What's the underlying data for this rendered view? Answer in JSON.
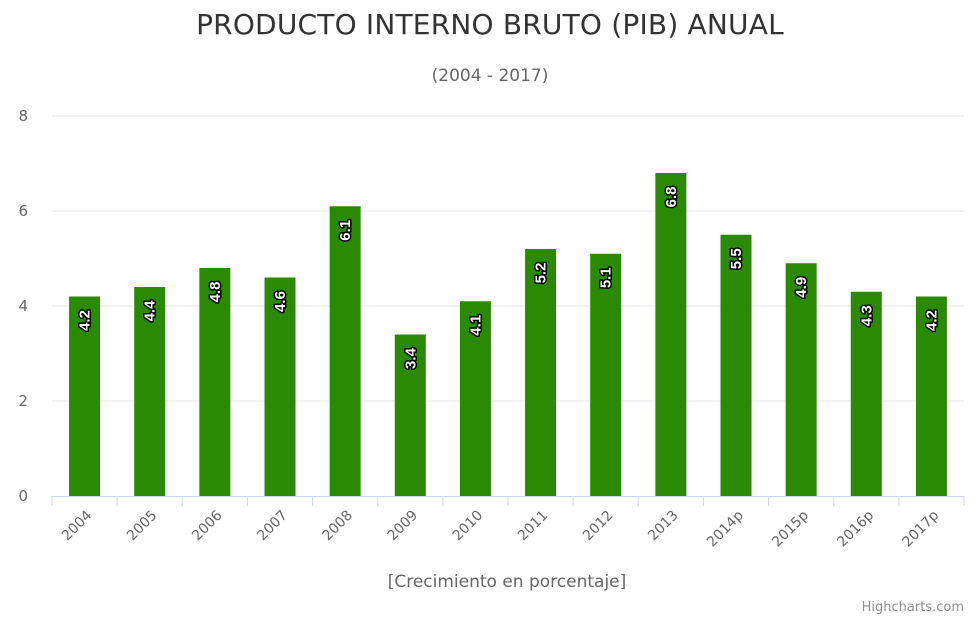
{
  "chart_data": {
    "type": "bar",
    "title": "PRODUCTO INTERNO BRUTO (PIB) ANUAL",
    "subtitle": "(2004 - 2017)",
    "xlabel": "[Crecimiento en porcentaje]",
    "ylabel": "",
    "categories": [
      "2004",
      "2005",
      "2006",
      "2007",
      "2008",
      "2009",
      "2010",
      "2011",
      "2012",
      "2013",
      "2014p",
      "2015p",
      "2016p",
      "2017p"
    ],
    "values": [
      4.2,
      4.4,
      4.8,
      4.6,
      6.1,
      3.4,
      4.1,
      5.2,
      5.1,
      6.8,
      5.5,
      4.9,
      4.3,
      4.2
    ],
    "ylim": [
      0,
      8
    ],
    "yticks": [
      0,
      2,
      4,
      6,
      8
    ],
    "grid": true,
    "legend": false,
    "bar_color": "#2b8a03",
    "data_labels": true,
    "credits": "Highcharts.com"
  }
}
